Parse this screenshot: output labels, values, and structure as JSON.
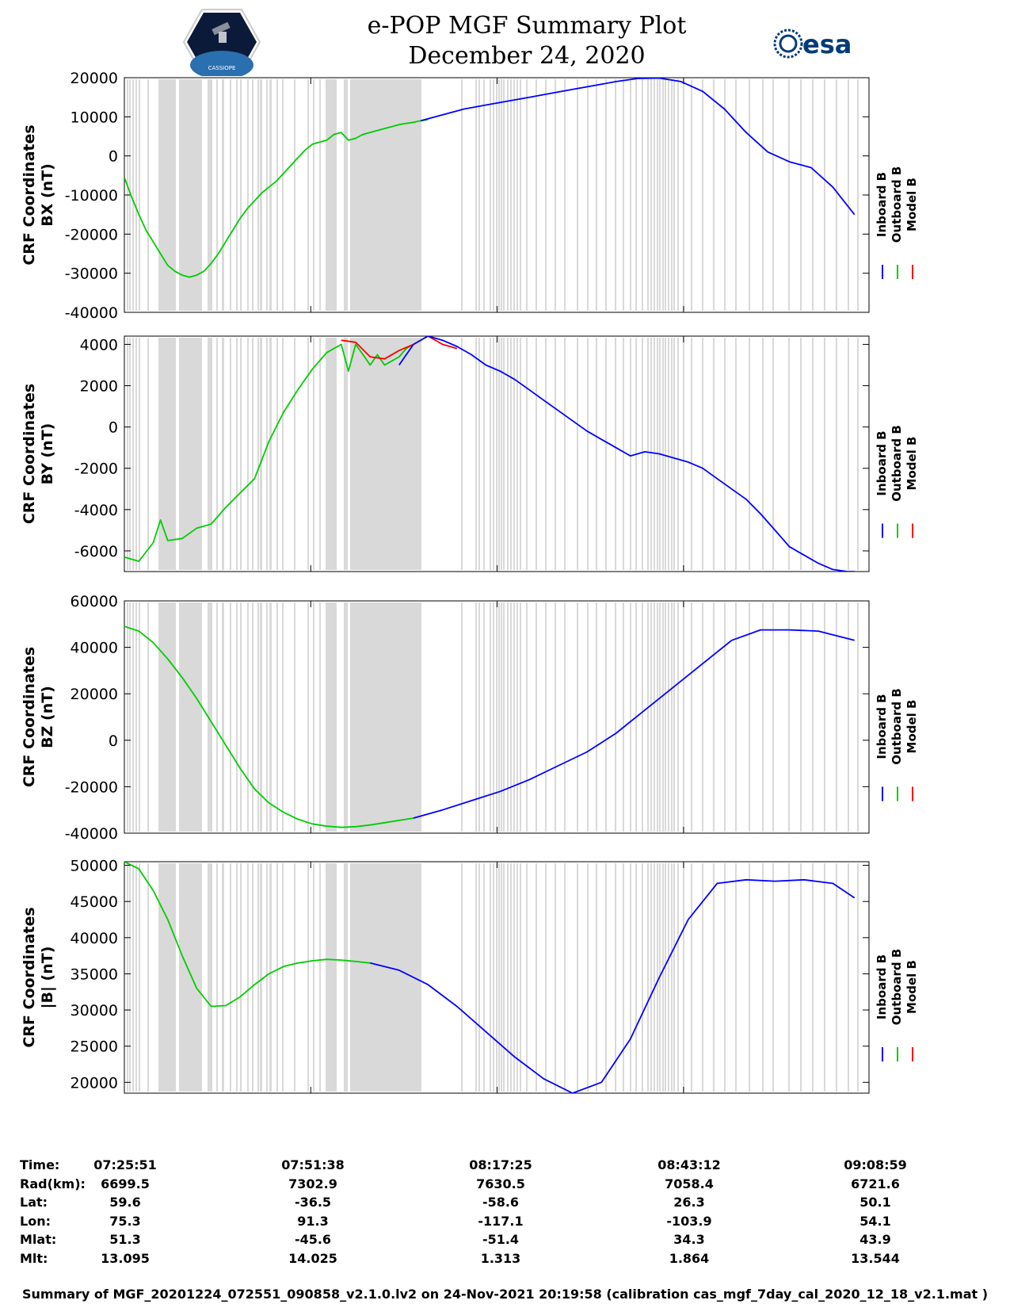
{
  "header": {
    "title_line1": "e-POP MGF Summary Plot",
    "title_line2": "December 24, 2020",
    "mission_logo_text": "CASSIOPE",
    "agency_logo_text": "esa"
  },
  "legend_labels": [
    "Inboard B",
    "Outboard B",
    "Model B"
  ],
  "colors": {
    "inboard": "#0000ff",
    "outboard": "#00cc00",
    "model": "#ff0000",
    "gap": "#d9d9d9"
  },
  "chart_data": [
    {
      "type": "line",
      "ylabel_line1": "CRF Coordinates",
      "ylabel_line2": "BX (nT)",
      "ylim": [
        -40000,
        20000
      ],
      "yticks": [
        20000,
        10000,
        0,
        -10000,
        -20000,
        -30000,
        -40000
      ],
      "x_unit": "minutes after 07:25:51",
      "series": [
        {
          "name": "Outboard B",
          "x": [
            0,
            1,
            2,
            3,
            4,
            5,
            6,
            7,
            8,
            9,
            10,
            11,
            12,
            13,
            14,
            15,
            16,
            17,
            18,
            19,
            20,
            21,
            22,
            23,
            24,
            25,
            26,
            27,
            28,
            29,
            30,
            31,
            32,
            33,
            34,
            35,
            36,
            37,
            38,
            39,
            40,
            41,
            42
          ],
          "values": [
            -5500,
            -10500,
            -15000,
            -19000,
            -22000,
            -25000,
            -28000,
            -29500,
            -30500,
            -31000,
            -30500,
            -29500,
            -27500,
            -25000,
            -22000,
            -19000,
            -16000,
            -13500,
            -11500,
            -9500,
            -8000,
            -6500,
            -4500,
            -2500,
            -500,
            1500,
            3000,
            3500,
            4000,
            5500,
            6000,
            4000,
            4500,
            5500,
            6000,
            6500,
            7000,
            7500,
            8000,
            8300,
            8600,
            9000,
            9300
          ]
        },
        {
          "name": "Inboard B",
          "x": [
            41,
            44,
            47,
            50,
            53,
            56,
            59,
            62,
            65,
            68,
            71,
            74,
            77,
            80,
            83,
            86,
            89,
            92,
            95,
            98,
            101
          ],
          "values": [
            9000,
            10500,
            12000,
            13000,
            14000,
            15000,
            16000,
            17000,
            18000,
            19000,
            19800,
            19900,
            19000,
            16500,
            12000,
            6000,
            1000,
            -1500,
            -3000,
            -8000,
            -15000
          ]
        }
      ]
    },
    {
      "type": "line",
      "ylabel_line1": "CRF Coordinates",
      "ylabel_line2": "BY (nT)",
      "ylim": [
        -7000,
        4400
      ],
      "yticks": [
        4000,
        2000,
        0,
        -2000,
        -4000,
        -6000
      ],
      "x_unit": "minutes after 07:25:51",
      "series": [
        {
          "name": "Outboard B",
          "x": [
            0,
            2,
            4,
            5,
            6,
            8,
            10,
            12,
            14,
            16,
            18,
            20,
            22,
            24,
            26,
            28,
            30,
            31,
            32,
            33,
            34,
            35,
            36,
            37,
            38,
            39,
            40
          ],
          "values": [
            -6300,
            -6500,
            -5600,
            -4500,
            -5500,
            -5400,
            -4900,
            -4700,
            -3900,
            -3200,
            -2500,
            -700,
            700,
            1800,
            2800,
            3600,
            4000,
            2700,
            4000,
            3500,
            3000,
            3500,
            3000,
            3200,
            3400,
            3800,
            4000
          ]
        },
        {
          "name": "Model B",
          "x": [
            30,
            32,
            34,
            36,
            38,
            40,
            42,
            44,
            46
          ],
          "values": [
            4200,
            4100,
            3400,
            3300,
            3700,
            4000,
            4400,
            4000,
            3800
          ]
        },
        {
          "name": "Inboard B",
          "x": [
            38,
            40,
            42,
            44,
            46,
            48,
            50,
            52,
            54,
            56,
            58,
            60,
            62,
            64,
            66,
            68,
            70,
            72,
            74,
            76,
            78,
            80,
            82,
            84,
            86,
            88,
            90,
            92,
            94,
            96,
            98,
            100,
            101
          ],
          "values": [
            3000,
            4000,
            4400,
            4200,
            3900,
            3500,
            3000,
            2700,
            2300,
            1800,
            1300,
            800,
            300,
            -200,
            -600,
            -1000,
            -1400,
            -1200,
            -1300,
            -1500,
            -1700,
            -2000,
            -2500,
            -3000,
            -3500,
            -4200,
            -5000,
            -5800,
            -6200,
            -6600,
            -6900,
            -7000,
            -7000
          ]
        }
      ]
    },
    {
      "type": "line",
      "ylabel_line1": "CRF Coordinates",
      "ylabel_line2": "BZ (nT)",
      "ylim": [
        -40000,
        60000
      ],
      "yticks": [
        60000,
        40000,
        20000,
        0,
        -20000,
        -40000
      ],
      "x_unit": "minutes after 07:25:51",
      "series": [
        {
          "name": "Outboard B",
          "x": [
            0,
            2,
            4,
            6,
            8,
            10,
            12,
            14,
            16,
            18,
            20,
            22,
            24,
            26,
            28,
            30,
            32,
            34,
            36,
            38,
            40
          ],
          "values": [
            49000,
            47000,
            42000,
            35000,
            27000,
            18000,
            8000,
            -2000,
            -12000,
            -21000,
            -27000,
            -31000,
            -34000,
            -36000,
            -37000,
            -37500,
            -37200,
            -36500,
            -35500,
            -34500,
            -33500
          ]
        },
        {
          "name": "Inboard B",
          "x": [
            40,
            44,
            48,
            52,
            56,
            60,
            64,
            68,
            72,
            76,
            80,
            84,
            88,
            92,
            96,
            101
          ],
          "values": [
            -33500,
            -30000,
            -26000,
            -22000,
            -17000,
            -11000,
            -5000,
            3000,
            13000,
            23000,
            33000,
            43000,
            47500,
            47500,
            47000,
            43000
          ]
        }
      ]
    },
    {
      "type": "line",
      "ylabel_line1": "CRF Coordinates",
      "ylabel_line2": "|B| (nT)",
      "ylim": [
        18500,
        50500
      ],
      "yticks": [
        50000,
        45000,
        40000,
        35000,
        30000,
        25000,
        20000
      ],
      "x_unit": "minutes after 07:25:51",
      "series": [
        {
          "name": "Outboard B",
          "x": [
            0,
            2,
            4,
            6,
            8,
            10,
            12,
            14,
            16,
            18,
            20,
            22,
            24,
            26,
            28,
            30,
            32,
            34
          ],
          "values": [
            50500,
            49500,
            46500,
            42500,
            37500,
            33000,
            30500,
            30600,
            31800,
            33500,
            35000,
            36000,
            36500,
            36800,
            37000,
            36900,
            36700,
            36500
          ]
        },
        {
          "name": "Inboard B",
          "x": [
            34,
            38,
            42,
            46,
            50,
            54,
            58,
            62,
            66,
            70,
            74,
            78,
            82,
            86,
            90,
            94,
            98,
            101
          ],
          "values": [
            36500,
            35500,
            33500,
            30500,
            27000,
            23500,
            20500,
            18500,
            20000,
            26000,
            34500,
            42500,
            47500,
            48000,
            47800,
            48000,
            47500,
            45500
          ]
        }
      ]
    }
  ],
  "info_table": {
    "rows": [
      {
        "label": "Time:",
        "values": [
          "07:25:51",
          "07:51:38",
          "08:17:25",
          "08:43:12",
          "09:08:59"
        ]
      },
      {
        "label": "Rad(km):",
        "values": [
          "6699.5",
          "7302.9",
          "7630.5",
          "7058.4",
          "6721.6"
        ]
      },
      {
        "label": "Lat:",
        "values": [
          "59.6",
          "-36.5",
          "-58.6",
          "26.3",
          "50.1"
        ]
      },
      {
        "label": "Lon:",
        "values": [
          "75.3",
          "91.3",
          "-117.1",
          "-103.9",
          "54.1"
        ]
      },
      {
        "label": "Mlat:",
        "values": [
          "51.3",
          "-45.6",
          "-51.4",
          "34.3",
          "43.9"
        ]
      },
      {
        "label": "Mlt:",
        "values": [
          "13.095",
          "14.025",
          "1.313",
          "1.864",
          "13.544"
        ]
      }
    ]
  },
  "footer": "Summary of MGF_20201224_072551_090858_v2.1.0.lv2 on 24-Nov-2021 20:19:58 (calibration cas_mgf_7day_cal_2020_12_18_v2.1.mat )"
}
